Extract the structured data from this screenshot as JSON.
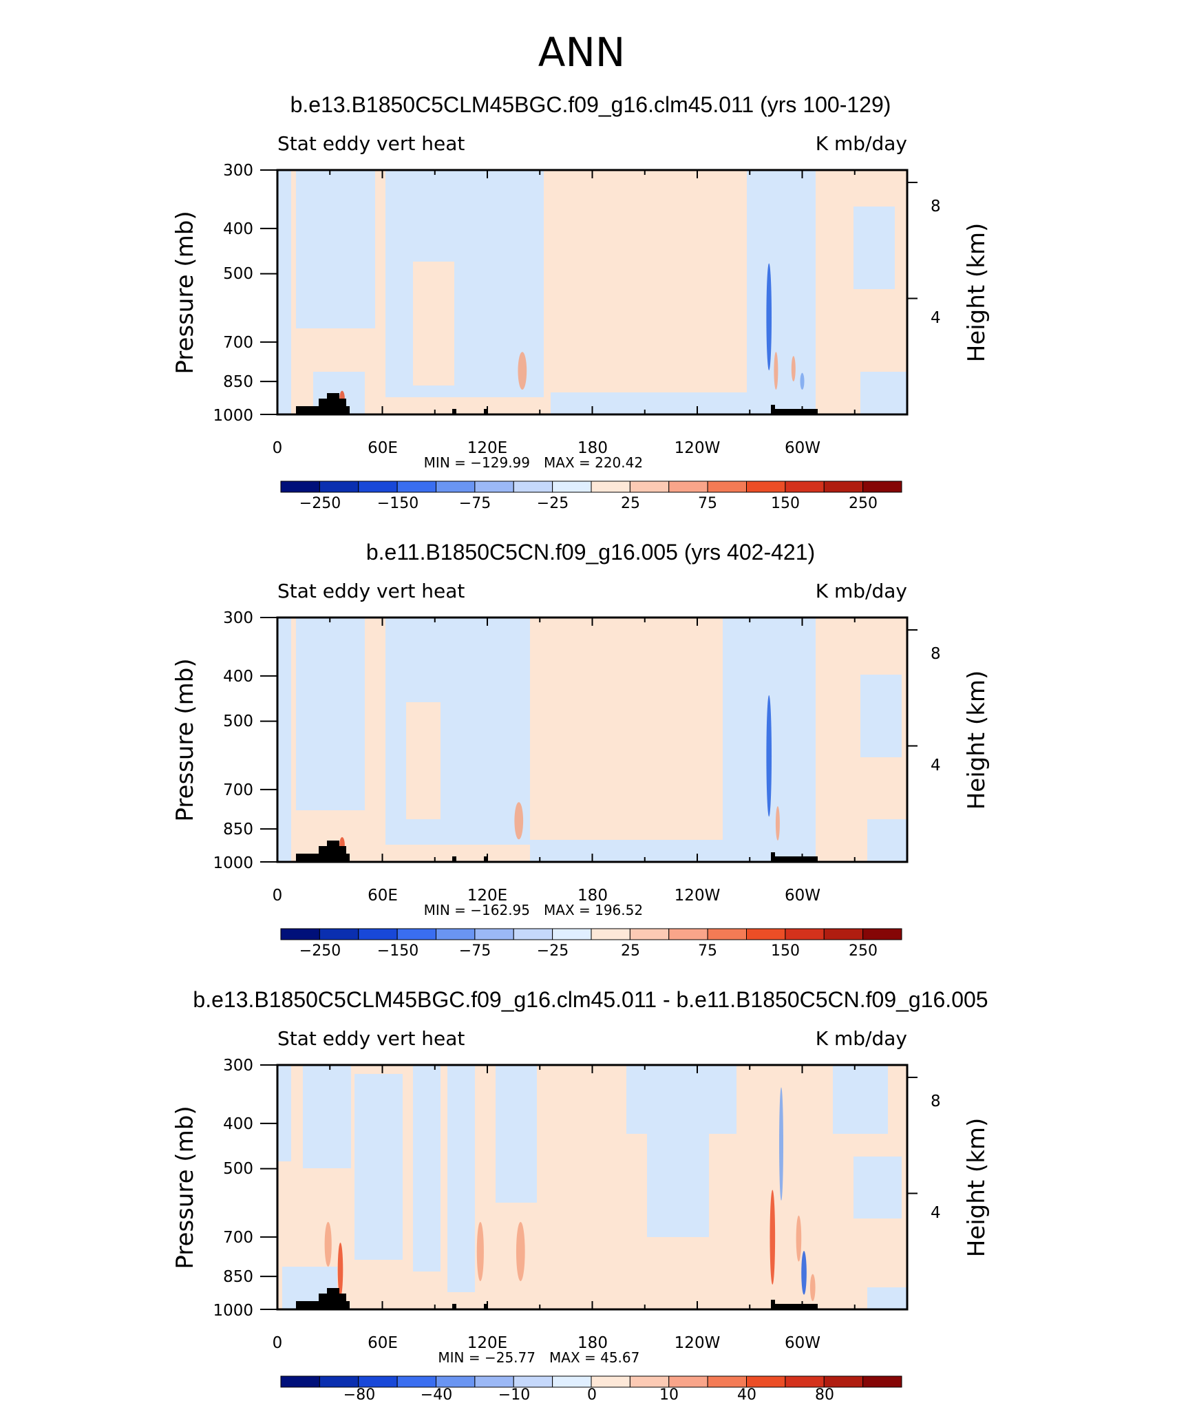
{
  "figure": {
    "title": "ANN"
  },
  "colors": {
    "positive_bg": "#fde5d3",
    "negative_bg": "#d4e6fb",
    "orange_mid": "#f4a582",
    "red_strong": "#e8502a",
    "blue_strong": "#2460e0",
    "blue_mid": "#7aa6ee",
    "terrain": "#000000"
  },
  "colorbar_palette": [
    "#00107a",
    "#0a2fb0",
    "#1848d8",
    "#3a6ef0",
    "#6a95f2",
    "#9bb8f6",
    "#c5d8fb",
    "#e0efff",
    "#fde8d8",
    "#fccab4",
    "#f9a58a",
    "#f47b55",
    "#ec4e26",
    "#d4321c",
    "#b01d10",
    "#850606"
  ],
  "chart_data": [
    {
      "type": "heatmap",
      "panel_title": "b.e13.B1850C5CLM45BGC.f09_g16.clm45.011 (yrs 100-129)",
      "left_label": "Stat eddy vert heat",
      "right_label": "K mb/day",
      "xlabel": "",
      "ylabel": "Pressure (mb)",
      "ylabel_right": "Height (km)",
      "x_ticks": [
        "0",
        "60E",
        "120E",
        "180",
        "120W",
        "60W"
      ],
      "x_tick_values": [
        0,
        60,
        120,
        180,
        240,
        300
      ],
      "xlim": [
        0,
        360
      ],
      "y_ticks": [
        "300",
        "400",
        "500",
        "700",
        "850",
        "1000"
      ],
      "y_tick_values": [
        300,
        400,
        500,
        700,
        850,
        1000
      ],
      "ylim": [
        1000,
        300
      ],
      "y_right_ticks": [
        "8",
        "4"
      ],
      "y_right_values": [
        8,
        4
      ],
      "min_text": "MIN = −129.99",
      "max_text": "MAX = 220.42",
      "colorbar_labels": [
        "−250",
        "−150",
        "−75",
        "−25",
        "25",
        "75",
        "150",
        "250"
      ],
      "features": [
        {
          "lon": 140,
          "p_center": 810,
          "p_extent": 150,
          "width_deg": 5,
          "value": 75
        },
        {
          "lon": 37,
          "p_center": 925,
          "p_extent": 70,
          "width_deg": 3,
          "value": 150
        },
        {
          "lon": 281,
          "p_center": 640,
          "p_extent": 330,
          "width_deg": 3,
          "value": -150
        },
        {
          "lon": 285,
          "p_center": 810,
          "p_extent": 150,
          "width_deg": 2,
          "value": 75
        },
        {
          "lon": 295,
          "p_center": 800,
          "p_extent": 100,
          "width_deg": 2,
          "value": 75
        },
        {
          "lon": 300,
          "p_center": 850,
          "p_extent": 70,
          "width_deg": 2,
          "value": -75
        }
      ]
    },
    {
      "type": "heatmap",
      "panel_title": "b.e11.B1850C5CN.f09_g16.005 (yrs 402-421)",
      "left_label": "Stat eddy vert heat",
      "right_label": "K mb/day",
      "xlabel": "",
      "ylabel": "Pressure (mb)",
      "ylabel_right": "Height (km)",
      "x_ticks": [
        "0",
        "60E",
        "120E",
        "180",
        "120W",
        "60W"
      ],
      "x_tick_values": [
        0,
        60,
        120,
        180,
        240,
        300
      ],
      "xlim": [
        0,
        360
      ],
      "y_ticks": [
        "300",
        "400",
        "500",
        "700",
        "850",
        "1000"
      ],
      "y_tick_values": [
        300,
        400,
        500,
        700,
        850,
        1000
      ],
      "ylim": [
        1000,
        300
      ],
      "y_right_ticks": [
        "8",
        "4"
      ],
      "y_right_values": [
        8,
        4
      ],
      "min_text": "MIN = −162.95",
      "max_text": "MAX = 196.52",
      "colorbar_labels": [
        "−250",
        "−150",
        "−75",
        "−25",
        "25",
        "75",
        "150",
        "250"
      ],
      "features": [
        {
          "lon": 138,
          "p_center": 820,
          "p_extent": 150,
          "width_deg": 5,
          "value": 75
        },
        {
          "lon": 37,
          "p_center": 920,
          "p_extent": 70,
          "width_deg": 3,
          "value": 150
        },
        {
          "lon": 281,
          "p_center": 620,
          "p_extent": 360,
          "width_deg": 3,
          "value": -150
        },
        {
          "lon": 286,
          "p_center": 830,
          "p_extent": 140,
          "width_deg": 2,
          "value": 75
        }
      ]
    },
    {
      "type": "heatmap",
      "panel_title": "b.e13.B1850C5CLM45BGC.f09_g16.clm45.011 - b.e11.B1850C5CN.f09_g16.005",
      "left_label": "Stat eddy vert heat",
      "right_label": "K mb/day",
      "xlabel": "",
      "ylabel": "Pressure (mb)",
      "ylabel_right": "Height (km)",
      "x_ticks": [
        "0",
        "60E",
        "120E",
        "180",
        "120W",
        "60W"
      ],
      "x_tick_values": [
        0,
        60,
        120,
        180,
        240,
        300
      ],
      "xlim": [
        0,
        360
      ],
      "y_ticks": [
        "300",
        "400",
        "500",
        "700",
        "850",
        "1000"
      ],
      "y_tick_values": [
        300,
        400,
        500,
        700,
        850,
        1000
      ],
      "ylim": [
        1000,
        300
      ],
      "y_right_ticks": [
        "8",
        "4"
      ],
      "y_right_values": [
        8,
        4
      ],
      "min_text": "MIN = −25.77",
      "max_text": "MAX =   45.67",
      "colorbar_labels": [
        "−80",
        "−40",
        "−10",
        "0",
        "10",
        "40",
        "80"
      ],
      "features": [
        {
          "lon": 29,
          "p_center": 730,
          "p_extent": 160,
          "width_deg": 4,
          "value": 10
        },
        {
          "lon": 36,
          "p_center": 830,
          "p_extent": 220,
          "width_deg": 3,
          "value": 40
        },
        {
          "lon": 116,
          "p_center": 760,
          "p_extent": 220,
          "width_deg": 4,
          "value": 10
        },
        {
          "lon": 139,
          "p_center": 760,
          "p_extent": 220,
          "width_deg": 5,
          "value": 10
        },
        {
          "lon": 283,
          "p_center": 720,
          "p_extent": 330,
          "width_deg": 3,
          "value": 40
        },
        {
          "lon": 288,
          "p_center": 460,
          "p_extent": 250,
          "width_deg": 2,
          "value": -10
        },
        {
          "lon": 298,
          "p_center": 710,
          "p_extent": 160,
          "width_deg": 3,
          "value": 10
        },
        {
          "lon": 301,
          "p_center": 840,
          "p_extent": 180,
          "width_deg": 3,
          "value": -40
        },
        {
          "lon": 306,
          "p_center": 900,
          "p_extent": 120,
          "width_deg": 3,
          "value": 10
        }
      ]
    }
  ]
}
